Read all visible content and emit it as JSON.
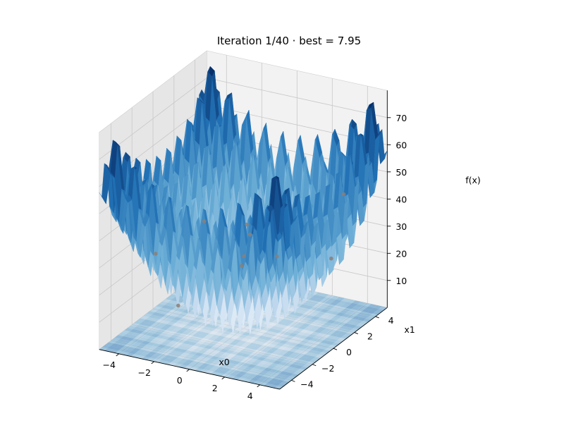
{
  "chart_data": {
    "type": "surface3d",
    "title": "Iteration 1/40  ·  best = 7.95",
    "xlabel": "x0",
    "ylabel": "x1",
    "zlabel": "f(x)",
    "xlim": [
      -5.12,
      5.12
    ],
    "ylim": [
      -5.12,
      5.12
    ],
    "zlim": [
      0,
      80
    ],
    "xticks": [
      -4,
      -2,
      0,
      2,
      4
    ],
    "yticks": [
      -4,
      -2,
      0,
      2,
      4
    ],
    "zticks": [
      10,
      20,
      30,
      40,
      50,
      60,
      70
    ],
    "function": "rastrigin",
    "colormap": "Blues",
    "contour_projection": "bottom",
    "best_value": 7.95,
    "iteration": 1,
    "total_iterations": 40,
    "population": [
      [
        -4.0,
        3.0
      ],
      [
        -2.0,
        4.0
      ],
      [
        0.0,
        3.2
      ],
      [
        3.2,
        4.2
      ],
      [
        3.8,
        2.0
      ],
      [
        -0.2,
        0.4
      ],
      [
        0.5,
        -0.5
      ],
      [
        -1.9,
        -3.0
      ],
      [
        2.0,
        -3.5
      ],
      [
        -3.0,
        -3.3
      ]
    ]
  },
  "colors": {
    "surface_low": "#f7fbff",
    "surface_high": "#08519c",
    "point": "#8a7f7a",
    "pane": "#f2f2f2"
  }
}
